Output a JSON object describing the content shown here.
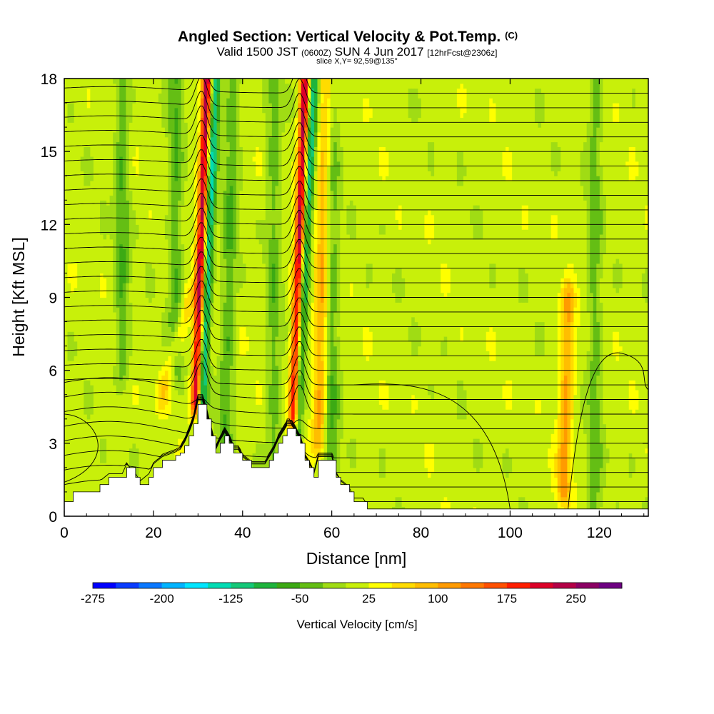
{
  "chart_data": {
    "type": "heatmap",
    "title": "Angled Section: Vertical Velocity & Pot.Temp.",
    "title_mark": "(C)",
    "subtitle": {
      "valid_prefix": "Valid 1500 JST",
      "utc": "(0600Z)",
      "date": "SUN 4 Jun 2017",
      "forecast": "[12hrFcst@2306z]",
      "slice": "slice X,Y= 92,59@135°"
    },
    "xlabel": "Distance [nm]",
    "ylabel": "Height [Kft MSL]",
    "xlim": [
      0,
      131
    ],
    "ylim": [
      0,
      18
    ],
    "x_ticks": [
      0,
      20,
      40,
      60,
      80,
      100,
      120
    ],
    "y_ticks": [
      0,
      3,
      6,
      9,
      12,
      15,
      18
    ],
    "colorbar": {
      "label": "Vertical Velocity [cm/s]",
      "min": -275,
      "max": 300,
      "step": 25,
      "tick_labels": [
        "-275",
        "-200",
        "-125",
        "-50",
        "25",
        "100",
        "175",
        "250"
      ],
      "colors": [
        "#0000ff",
        "#0a3cff",
        "#0a78ff",
        "#00b4ff",
        "#00e6ff",
        "#00dcb4",
        "#14c878",
        "#1eb43c",
        "#3caa14",
        "#64be14",
        "#a0dc14",
        "#c8f00a",
        "#ffff00",
        "#ffdc00",
        "#ffbe00",
        "#ff9b00",
        "#ff7800",
        "#ff5000",
        "#ff1e00",
        "#dc0028",
        "#b40046",
        "#8c0064",
        "#6e0082"
      ]
    },
    "terrain_kft": [
      [
        0,
        0.6
      ],
      [
        1,
        0.6
      ],
      [
        2,
        1.0
      ],
      [
        7,
        1.0
      ],
      [
        8,
        1.3
      ],
      [
        10,
        1.6
      ],
      [
        13,
        1.6
      ],
      [
        14,
        2.0
      ],
      [
        16,
        1.6
      ],
      [
        17,
        1.3
      ],
      [
        19,
        1.6
      ],
      [
        20,
        2.0
      ],
      [
        22,
        2.3
      ],
      [
        25,
        2.5
      ],
      [
        26,
        2.6
      ],
      [
        27,
        2.9
      ],
      [
        28,
        3.3
      ],
      [
        29,
        3.8
      ],
      [
        30,
        4.6
      ],
      [
        31,
        4.6
      ],
      [
        32,
        4.0
      ],
      [
        33,
        3.3
      ],
      [
        34,
        2.6
      ],
      [
        35,
        3.0
      ],
      [
        36,
        3.3
      ],
      [
        37,
        3.0
      ],
      [
        38,
        2.6
      ],
      [
        39,
        2.6
      ],
      [
        40,
        2.3
      ],
      [
        42,
        2.0
      ],
      [
        45,
        2.0
      ],
      [
        46,
        2.3
      ],
      [
        47,
        2.6
      ],
      [
        48,
        3.0
      ],
      [
        49,
        3.3
      ],
      [
        50,
        3.6
      ],
      [
        51,
        3.6
      ],
      [
        52,
        3.3
      ],
      [
        53,
        3.0
      ],
      [
        54,
        2.3
      ],
      [
        55,
        2.0
      ],
      [
        56,
        1.6
      ],
      [
        57,
        2.3
      ],
      [
        60,
        2.3
      ],
      [
        61,
        1.6
      ],
      [
        62,
        1.3
      ],
      [
        64,
        1.0
      ],
      [
        65,
        0.6
      ],
      [
        67,
        0.6
      ],
      [
        68,
        0.3
      ],
      [
        131,
        0.3
      ]
    ],
    "updrafts": [
      {
        "x_low": 29.5,
        "x_high": 32,
        "z_low": 4.6,
        "z_high": 18,
        "w": 230
      },
      {
        "x_low": 51.5,
        "x_high": 54,
        "z_low": 4.0,
        "z_high": 18,
        "w": 230
      },
      {
        "x_low": 22,
        "x_high": 28,
        "z_low": 5,
        "z_high": 9,
        "w": 60
      },
      {
        "x_low": 57,
        "x_high": 59,
        "z_low": 3,
        "z_high": 18,
        "w": 90
      },
      {
        "x_low": 112,
        "x_high": 113,
        "z_low": 1,
        "z_high": 9,
        "w": 95
      }
    ],
    "downdrafts": [
      {
        "x_low": 30.5,
        "x_high": 34,
        "z_low": 3.0,
        "z_high": 18,
        "w": -150
      },
      {
        "x_low": 52,
        "x_high": 56,
        "z_low": 3.0,
        "z_high": 18,
        "w": -140
      },
      {
        "x_low": 36,
        "x_high": 38,
        "z_low": 3,
        "z_high": 18,
        "w": -60
      },
      {
        "x_low": 25,
        "x_high": 25,
        "z_low": 6,
        "z_high": 18,
        "w": -60
      },
      {
        "x_low": 13,
        "x_high": 13,
        "z_low": 6,
        "z_high": 18,
        "w": -60
      },
      {
        "x_low": 47,
        "x_high": 47,
        "z_low": 2,
        "z_high": 18,
        "w": -50
      },
      {
        "x_low": 60,
        "x_high": 60,
        "z_low": 2,
        "z_high": 18,
        "w": -60
      },
      {
        "x_low": 119,
        "x_high": 119,
        "z_low": 0.3,
        "z_high": 18,
        "w": -50
      }
    ]
  }
}
